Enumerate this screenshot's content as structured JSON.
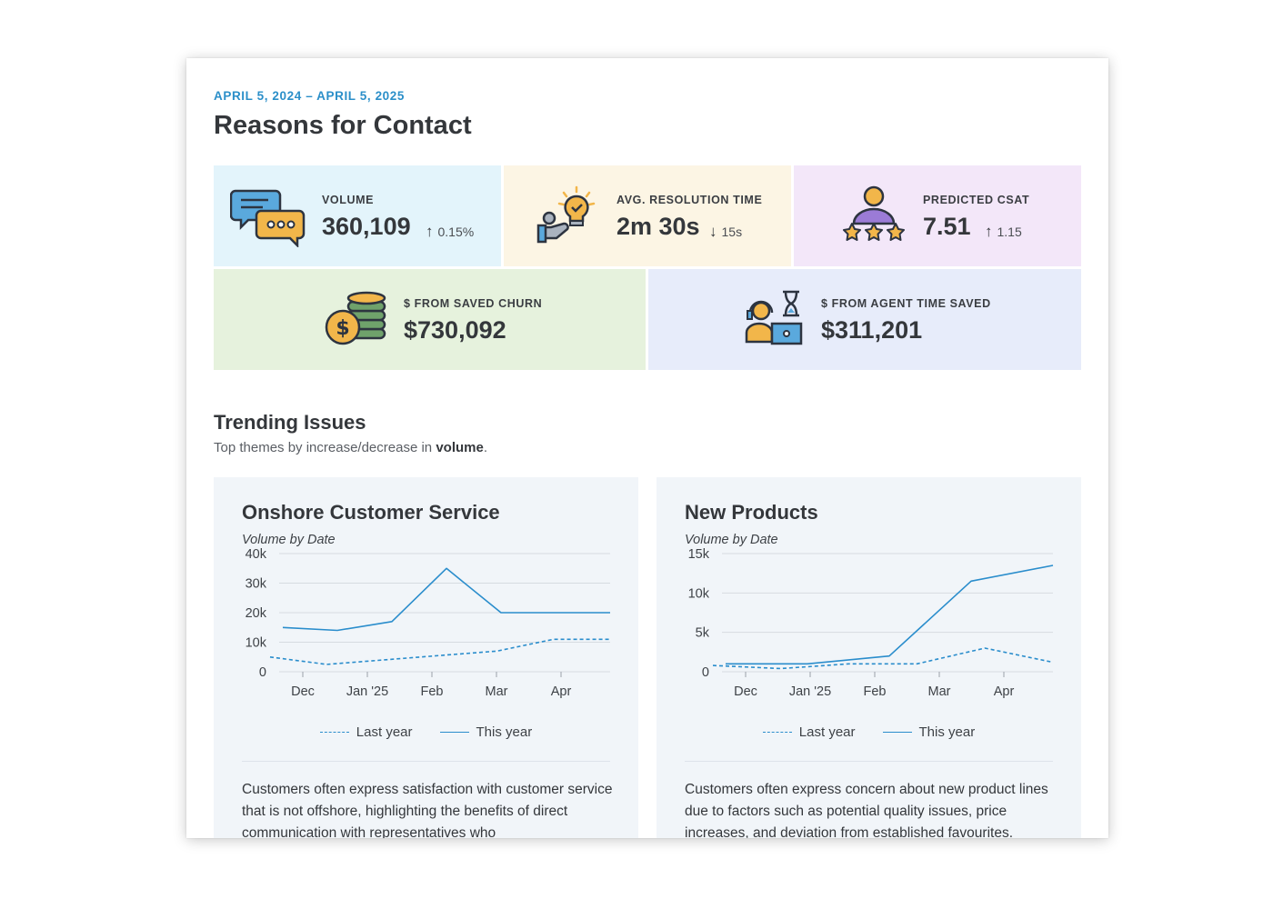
{
  "header": {
    "date_range": "APRIL 5, 2024 – APRIL 5, 2025",
    "title": "Reasons for Contact"
  },
  "kpis": {
    "volume": {
      "label": "VOLUME",
      "value": "360,109",
      "delta": "0.15%",
      "delta_direction": "up",
      "icon": "chat-bubbles-icon",
      "bg": "#e3f4fb"
    },
    "resolution": {
      "label": "AVG. RESOLUTION TIME",
      "value": "2m 30s",
      "delta": "15s",
      "delta_direction": "down",
      "icon": "lightbulb-hand-icon",
      "bg": "#fcf5e4"
    },
    "csat": {
      "label": "PREDICTED CSAT",
      "value": "7.51",
      "delta": "1.15",
      "delta_direction": "up",
      "icon": "person-stars-icon",
      "bg": "#f3e7f9"
    },
    "churn": {
      "label": "$ FROM SAVED CHURN",
      "value": "$730,092",
      "icon": "coins-icon",
      "bg": "#e6f2dd"
    },
    "agent_time": {
      "label": "$ FROM AGENT TIME SAVED",
      "value": "$311,201",
      "icon": "agent-hourglass-icon",
      "bg": "#e7ecfa"
    }
  },
  "trending": {
    "title": "Trending Issues",
    "subtitle_prefix": "Top themes by increase/decrease in ",
    "subtitle_bold": "volume",
    "subtitle_suffix": "."
  },
  "legend": {
    "last_year": "Last year",
    "this_year": "This year"
  },
  "colors": {
    "accent": "#2b8fc9",
    "line": "#2a8dcc"
  },
  "chart_data": [
    {
      "type": "line",
      "title": "Onshore Customer Service",
      "subtitle": "Volume by Date",
      "x_ticks": [
        "Dec",
        "Jan '25",
        "Feb",
        "Mar",
        "Apr"
      ],
      "y_ticks": [
        "40k",
        "30k",
        "20k",
        "10k",
        "0"
      ],
      "ylim": [
        0,
        40000
      ],
      "x": [
        0,
        1,
        2,
        3,
        4,
        5,
        6
      ],
      "series": [
        {
          "name": "Last year",
          "style": "dashed",
          "values": [
            5000,
            2500,
            4000,
            5500,
            7000,
            11000,
            11000
          ]
        },
        {
          "name": "This year",
          "style": "solid",
          "values": [
            15000,
            14000,
            17000,
            35000,
            20000,
            20000,
            20000
          ]
        }
      ],
      "description": "Customers often express satisfaction with customer service that is not  offshore, highlighting the benefits of direct communication with representatives who"
    },
    {
      "type": "line",
      "title": "New Products",
      "subtitle": "Volume by Date",
      "x_ticks": [
        "Dec",
        "Jan '25",
        "Feb",
        "Mar",
        "Apr"
      ],
      "y_ticks": [
        "15k",
        "10k",
        "5k",
        "0"
      ],
      "ylim": [
        0,
        15000
      ],
      "series": [
        {
          "name": "Last year",
          "style": "dashed",
          "values": [
            800,
            400,
            1000,
            1000,
            3000,
            1200
          ]
        },
        {
          "name": "This year",
          "style": "solid",
          "values": [
            1000,
            1000,
            2000,
            11500,
            13500
          ]
        }
      ],
      "description": "Customers often express concern about new product lines due to factors such as potential quality issues, price increases, and deviation from established favourites."
    }
  ]
}
